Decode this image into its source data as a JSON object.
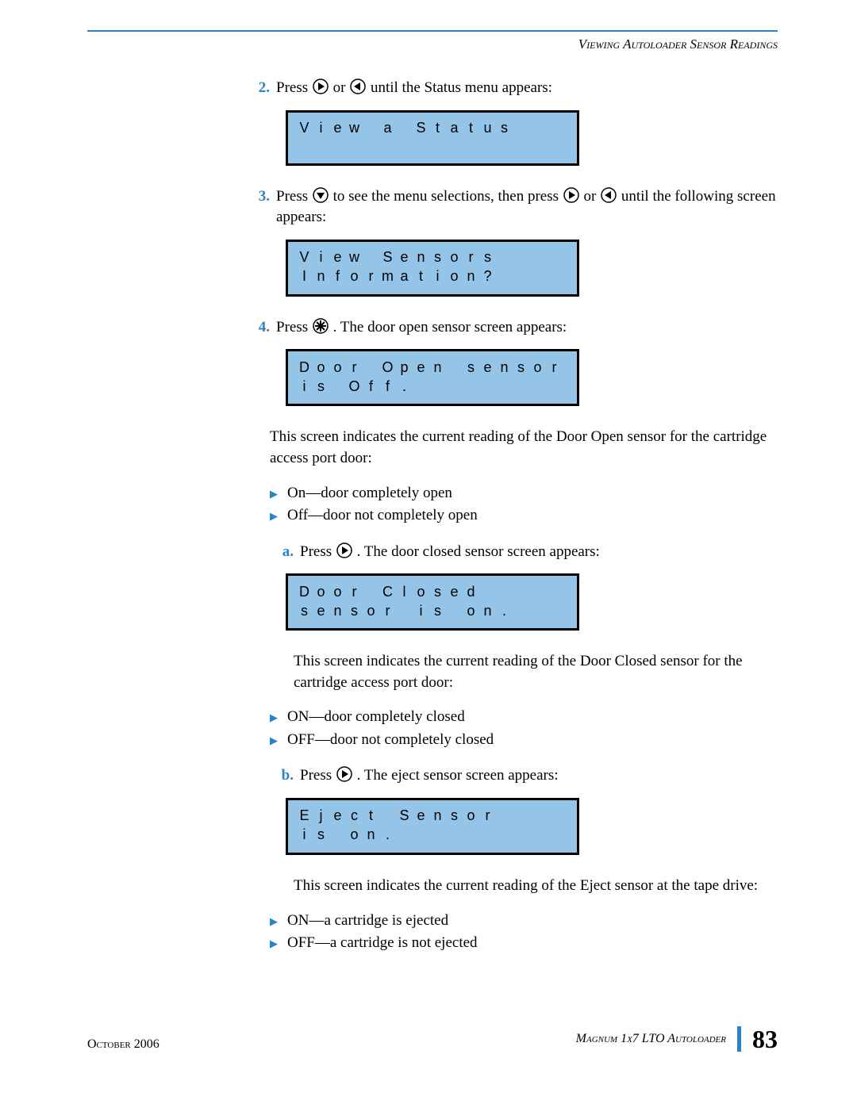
{
  "header": {
    "section_title": "Viewing Autoloader Sensor Readings"
  },
  "steps": {
    "s2": {
      "num": "2.",
      "text_before": "Press ",
      "text_mid": " or ",
      "text_after": " until the Status menu appears:"
    },
    "s3": {
      "num": "3.",
      "text_before": "Press ",
      "text_mid1": " to see the menu selections, then press ",
      "text_mid2": " or ",
      "text_after": " until the following screen appears:"
    },
    "s4": {
      "num": "4.",
      "text_before": "Press ",
      "text_after": ". The door open sensor screen appears:"
    },
    "s4_desc": "This screen indicates the current reading of the Door Open sensor for the cartridge access port door:",
    "s4_bullets": {
      "b1": "On—door completely open",
      "b2": "Off—door not completely open"
    },
    "sa": {
      "num": "a.",
      "text_before": "Press ",
      "text_after": ". The door closed sensor screen appears:"
    },
    "sa_desc": "This screen indicates the current reading of the Door Closed sensor for the cartridge access port door:",
    "sa_bullets": {
      "b1": "ON—door completely closed",
      "b2": "OFF—door not completely closed"
    },
    "sb": {
      "num": "b.",
      "text_before": "Press ",
      "text_after": ". The eject sensor screen appears:"
    },
    "sb_desc": "This screen indicates the current reading of the Eject sensor at the tape drive:",
    "sb_bullets": {
      "b1": "ON—a cartridge is ejected",
      "b2": "OFF—a cartridge is not ejected"
    }
  },
  "lcds": {
    "status": {
      "rows": [
        [
          "V",
          "i",
          "e",
          "w",
          "",
          "a",
          "",
          "S",
          "t",
          "a",
          "t",
          "u",
          "s",
          "",
          "",
          ""
        ]
      ],
      "tall": true
    },
    "sensors": {
      "rows": [
        [
          "V",
          "i",
          "e",
          "w",
          "",
          "S",
          "e",
          "n",
          "s",
          "o",
          "r",
          "s",
          "",
          "",
          "",
          ""
        ],
        [
          "I",
          "n",
          "f",
          "o",
          "r",
          "m",
          "a",
          "t",
          "i",
          "o",
          "n",
          "?",
          "",
          "",
          "",
          ""
        ]
      ]
    },
    "door_open": {
      "rows": [
        [
          "D",
          "o",
          "o",
          "r",
          "",
          "O",
          "p",
          "e",
          "n",
          "",
          "s",
          "e",
          "n",
          "s",
          "o",
          "r"
        ],
        [
          "i",
          "s",
          "",
          "O",
          "f",
          "f",
          ".",
          "",
          "",
          "",
          "",
          "",
          "",
          "",
          "",
          ""
        ]
      ]
    },
    "door_closed": {
      "rows": [
        [
          "D",
          "o",
          "o",
          "r",
          "",
          "C",
          "l",
          "o",
          "s",
          "e",
          "d",
          "",
          "",
          "",
          "",
          ""
        ],
        [
          "s",
          "e",
          "n",
          "s",
          "o",
          "r",
          "",
          "i",
          "s",
          "",
          "o",
          "n",
          ".",
          "",
          "",
          ""
        ]
      ]
    },
    "eject": {
      "rows": [
        [
          "E",
          "j",
          "e",
          "c",
          "t",
          "",
          "S",
          "e",
          "n",
          "s",
          "o",
          "r",
          "",
          "",
          "",
          ""
        ],
        [
          "i",
          "s",
          "",
          "o",
          "n",
          ".",
          "",
          "",
          "",
          "",
          "",
          "",
          "",
          "",
          "",
          ""
        ]
      ]
    }
  },
  "footer": {
    "date": "October 2006",
    "product": "Magnum 1x7 LTO Autoloader",
    "page": "83"
  },
  "colors": {
    "accent": "#2a83c4",
    "lcd_bg": "#94c4e7"
  }
}
